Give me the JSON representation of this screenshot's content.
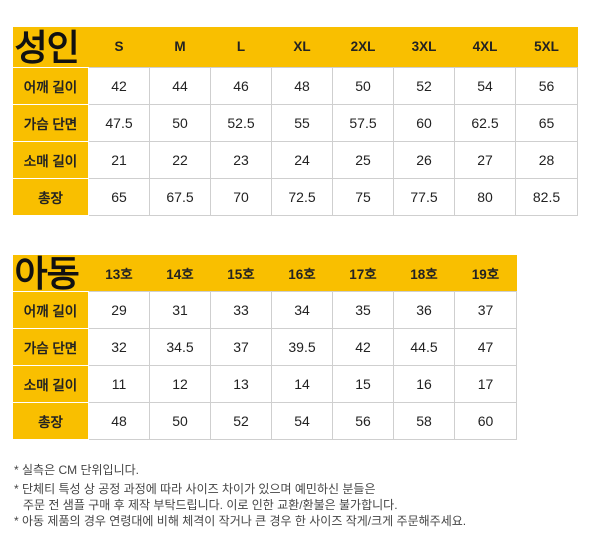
{
  "adult": {
    "title": "성인",
    "sizes": [
      "S",
      "M",
      "L",
      "XL",
      "2XL",
      "3XL",
      "4XL",
      "5XL"
    ],
    "rows": [
      {
        "label": "어깨 길이",
        "values": [
          "42",
          "44",
          "46",
          "48",
          "50",
          "52",
          "54",
          "56"
        ]
      },
      {
        "label": "가슴 단면",
        "values": [
          "47.5",
          "50",
          "52.5",
          "55",
          "57.5",
          "60",
          "62.5",
          "65"
        ]
      },
      {
        "label": "소매 길이",
        "values": [
          "21",
          "22",
          "23",
          "24",
          "25",
          "26",
          "27",
          "28"
        ]
      },
      {
        "label": "총장",
        "values": [
          "65",
          "67.5",
          "70",
          "72.5",
          "75",
          "77.5",
          "80",
          "82.5"
        ]
      }
    ]
  },
  "kids": {
    "title": "아동",
    "sizes": [
      "13호",
      "14호",
      "15호",
      "16호",
      "17호",
      "18호",
      "19호"
    ],
    "rows": [
      {
        "label": "어깨 길이",
        "values": [
          "29",
          "31",
          "33",
          "34",
          "35",
          "36",
          "37"
        ]
      },
      {
        "label": "가슴 단면",
        "values": [
          "32",
          "34.5",
          "37",
          "39.5",
          "42",
          "44.5",
          "47"
        ]
      },
      {
        "label": "소매 길이",
        "values": [
          "11",
          "12",
          "13",
          "14",
          "15",
          "16",
          "17"
        ]
      },
      {
        "label": "총장",
        "values": [
          "48",
          "50",
          "52",
          "54",
          "56",
          "58",
          "60"
        ]
      }
    ]
  },
  "notes": [
    {
      "line1": "* 실측은 CM 단위입니다.",
      "line2": ""
    },
    {
      "line1": "* 단체티 특성 상 공정 과정에 따라 사이즈 차이가 있으며 예민하신 분들은",
      "line2": "주문 전 샘플 구매 후 제작 부탁드립니다. 이로 인한 교환/환불은 불가합니다."
    },
    {
      "line1": "* 아동 제품의 경우 연령대에 비해 체격이 작거나 큰 경우 한 사이즈 작게/크게 주문해주세요.",
      "line2": ""
    }
  ],
  "colors": {
    "accent": "#f9bf00",
    "border": "#cfcfcf"
  }
}
